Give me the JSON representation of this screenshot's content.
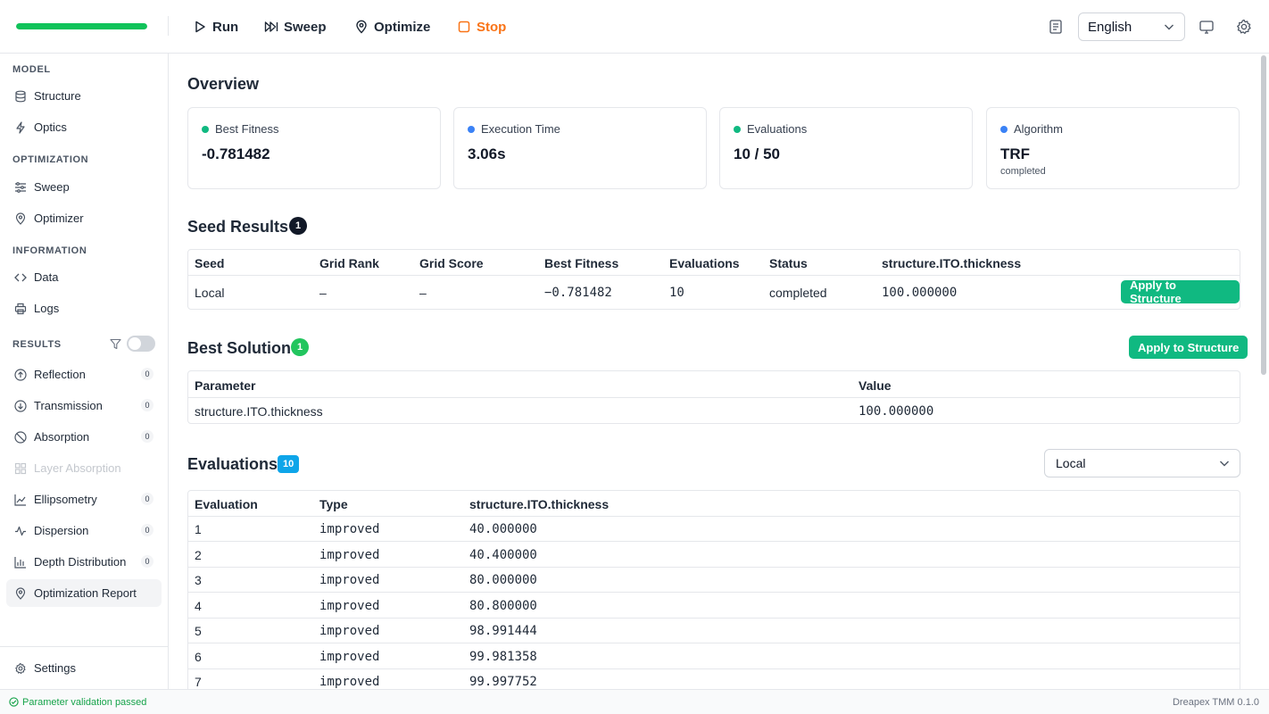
{
  "toolbar": {
    "progress": 1.0,
    "run_label": "Run",
    "sweep_label": "Sweep",
    "optimize_label": "Optimize",
    "stop_label": "Stop",
    "language": "English"
  },
  "sidebar": {
    "model_label": "MODEL",
    "structure": "Structure",
    "optics": "Optics",
    "optimization_label": "OPTIMIZATION",
    "sweep": "Sweep",
    "optimizer": "Optimizer",
    "information_label": "INFORMATION",
    "data": "Data",
    "logs": "Logs",
    "results_label": "RESULTS",
    "results": [
      {
        "label": "Reflection",
        "count": "0"
      },
      {
        "label": "Transmission",
        "count": "0"
      },
      {
        "label": "Absorption",
        "count": "0"
      },
      {
        "label": "Layer Absorption",
        "count": ""
      },
      {
        "label": "Ellipsometry",
        "count": "0"
      },
      {
        "label": "Dispersion",
        "count": "0"
      },
      {
        "label": "Depth Distribution",
        "count": "0"
      },
      {
        "label": "Optimization Report",
        "count": ""
      }
    ],
    "settings": "Settings"
  },
  "overview": {
    "title": "Overview",
    "cards": [
      {
        "label": "Best Fitness",
        "value": "-0.781482",
        "dot_color": "#10b981"
      },
      {
        "label": "Execution Time",
        "value": "3.06s",
        "dot_color": "#3b82f6"
      },
      {
        "label": "Evaluations",
        "value": "10 / 50",
        "dot_color": "#10b981"
      },
      {
        "label": "Algorithm",
        "value": "TRF",
        "sub": "completed",
        "dot_color": "#3b82f6"
      }
    ]
  },
  "seed_results": {
    "title": "Seed Results",
    "badge": "1",
    "headers": [
      "Seed",
      "Grid Rank",
      "Grid Score",
      "Best Fitness",
      "Evaluations",
      "Status",
      "structure.ITO.thickness"
    ],
    "row": [
      "Local",
      "–",
      "–",
      "−0.781482",
      "10",
      "completed",
      "100.000000"
    ],
    "apply_label": "Apply to Structure"
  },
  "best_solution": {
    "title": "Best Solution",
    "badge": "1",
    "apply_label": "Apply to Structure",
    "headers": [
      "Parameter",
      "Value"
    ],
    "row": [
      "structure.ITO.thickness",
      "100.000000"
    ]
  },
  "evaluations": {
    "title": "Evaluations",
    "badge": "10",
    "filter": "Local",
    "headers": [
      "Evaluation",
      "Type",
      "structure.ITO.thickness"
    ],
    "rows": [
      [
        "1",
        "improved",
        "40.000000"
      ],
      [
        "2",
        "improved",
        "40.400000"
      ],
      [
        "3",
        "improved",
        "80.000000"
      ],
      [
        "4",
        "improved",
        "80.800000"
      ],
      [
        "5",
        "improved",
        "98.991444"
      ],
      [
        "6",
        "improved",
        "99.981358"
      ],
      [
        "7",
        "improved",
        "99.997752"
      ]
    ]
  },
  "status": {
    "message": "Parameter validation passed",
    "version": "Dreapex TMM 0.1.0"
  }
}
